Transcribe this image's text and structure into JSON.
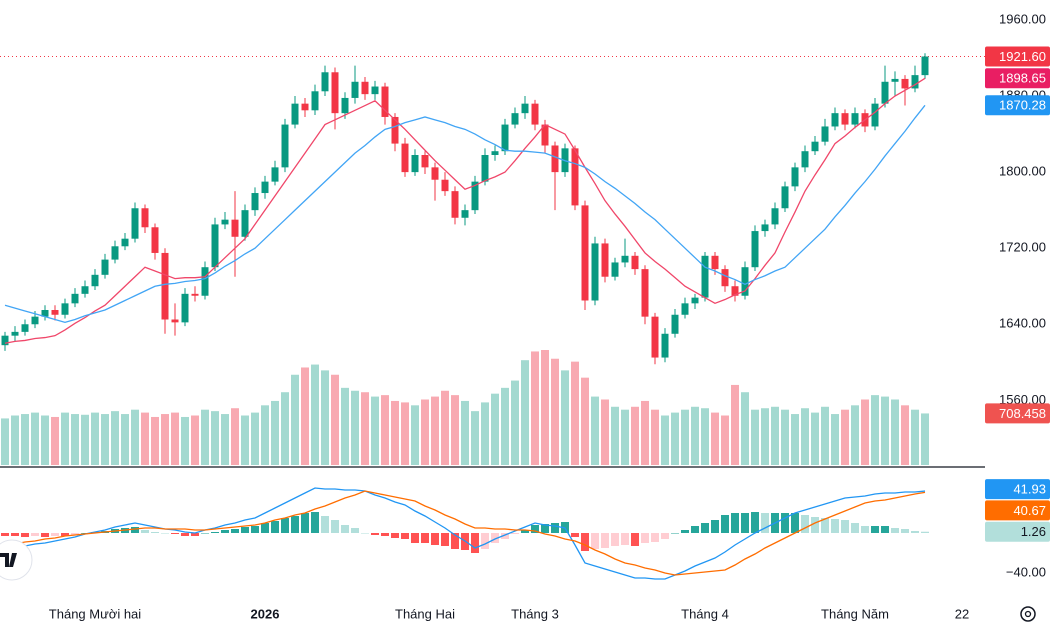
{
  "chart_data": {
    "type": "candlestick",
    "candles": [
      [
        1618,
        1632,
        1612,
        1628
      ],
      [
        1628,
        1638,
        1622,
        1632
      ],
      [
        1632,
        1645,
        1628,
        1640
      ],
      [
        1640,
        1654,
        1636,
        1648
      ],
      [
        1648,
        1660,
        1644,
        1655
      ],
      [
        1655,
        1660,
        1644,
        1650
      ],
      [
        1650,
        1667,
        1646,
        1662
      ],
      [
        1662,
        1678,
        1658,
        1672
      ],
      [
        1672,
        1686,
        1668,
        1680
      ],
      [
        1680,
        1698,
        1676,
        1692
      ],
      [
        1692,
        1714,
        1688,
        1708
      ],
      [
        1708,
        1728,
        1704,
        1722
      ],
      [
        1722,
        1736,
        1718,
        1730
      ],
      [
        1730,
        1768,
        1726,
        1762
      ],
      [
        1762,
        1766,
        1736,
        1742
      ],
      [
        1742,
        1746,
        1708,
        1715
      ],
      [
        1715,
        1720,
        1630,
        1645
      ],
      [
        1645,
        1662,
        1628,
        1642
      ],
      [
        1642,
        1678,
        1638,
        1672
      ],
      [
        1672,
        1680,
        1664,
        1670
      ],
      [
        1670,
        1706,
        1666,
        1700
      ],
      [
        1700,
        1752,
        1696,
        1745
      ],
      [
        1745,
        1758,
        1740,
        1750
      ],
      [
        1750,
        1780,
        1690,
        1732
      ],
      [
        1732,
        1766,
        1728,
        1760
      ],
      [
        1760,
        1784,
        1754,
        1778
      ],
      [
        1778,
        1796,
        1772,
        1790
      ],
      [
        1790,
        1812,
        1786,
        1805
      ],
      [
        1805,
        1856,
        1800,
        1850
      ],
      [
        1850,
        1880,
        1846,
        1872
      ],
      [
        1872,
        1878,
        1858,
        1865
      ],
      [
        1865,
        1892,
        1860,
        1885
      ],
      [
        1885,
        1912,
        1880,
        1905
      ],
      [
        1905,
        1910,
        1845,
        1862
      ],
      [
        1862,
        1884,
        1856,
        1878
      ],
      [
        1878,
        1912,
        1872,
        1895
      ],
      [
        1895,
        1900,
        1876,
        1882
      ],
      [
        1882,
        1896,
        1876,
        1890
      ],
      [
        1890,
        1894,
        1850,
        1858
      ],
      [
        1858,
        1862,
        1822,
        1830
      ],
      [
        1830,
        1836,
        1795,
        1800
      ],
      [
        1800,
        1824,
        1796,
        1818
      ],
      [
        1818,
        1822,
        1798,
        1805
      ],
      [
        1805,
        1810,
        1770,
        1792
      ],
      [
        1792,
        1800,
        1775,
        1780
      ],
      [
        1780,
        1785,
        1745,
        1752
      ],
      [
        1752,
        1766,
        1744,
        1760
      ],
      [
        1760,
        1796,
        1756,
        1790
      ],
      [
        1790,
        1825,
        1786,
        1818
      ],
      [
        1818,
        1828,
        1812,
        1822
      ],
      [
        1822,
        1856,
        1818,
        1850
      ],
      [
        1850,
        1868,
        1846,
        1862
      ],
      [
        1862,
        1880,
        1856,
        1872
      ],
      [
        1872,
        1876,
        1844,
        1850
      ],
      [
        1850,
        1855,
        1820,
        1828
      ],
      [
        1828,
        1832,
        1760,
        1800
      ],
      [
        1800,
        1830,
        1795,
        1825
      ],
      [
        1825,
        1828,
        1760,
        1765
      ],
      [
        1765,
        1770,
        1655,
        1665
      ],
      [
        1665,
        1732,
        1660,
        1725
      ],
      [
        1725,
        1730,
        1684,
        1690
      ],
      [
        1690,
        1710,
        1686,
        1705
      ],
      [
        1705,
        1730,
        1700,
        1712
      ],
      [
        1712,
        1716,
        1692,
        1698
      ],
      [
        1698,
        1702,
        1640,
        1648
      ],
      [
        1648,
        1652,
        1598,
        1605
      ],
      [
        1605,
        1636,
        1600,
        1630
      ],
      [
        1630,
        1656,
        1626,
        1650
      ],
      [
        1650,
        1668,
        1646,
        1662
      ],
      [
        1662,
        1672,
        1656,
        1668
      ],
      [
        1668,
        1716,
        1664,
        1712
      ],
      [
        1712,
        1716,
        1692,
        1698
      ],
      [
        1698,
        1702,
        1674,
        1680
      ],
      [
        1680,
        1686,
        1664,
        1670
      ],
      [
        1670,
        1706,
        1666,
        1700
      ],
      [
        1700,
        1744,
        1696,
        1738
      ],
      [
        1738,
        1750,
        1732,
        1745
      ],
      [
        1745,
        1768,
        1740,
        1762
      ],
      [
        1762,
        1790,
        1758,
        1785
      ],
      [
        1785,
        1810,
        1780,
        1805
      ],
      [
        1805,
        1828,
        1800,
        1822
      ],
      [
        1822,
        1838,
        1818,
        1832
      ],
      [
        1832,
        1856,
        1828,
        1848
      ],
      [
        1848,
        1868,
        1844,
        1862
      ],
      [
        1862,
        1866,
        1844,
        1850
      ],
      [
        1850,
        1868,
        1846,
        1862
      ],
      [
        1862,
        1866,
        1842,
        1848
      ],
      [
        1848,
        1878,
        1844,
        1872
      ],
      [
        1872,
        1912,
        1868,
        1895
      ],
      [
        1895,
        1906,
        1880,
        1898
      ],
      [
        1898,
        1902,
        1870,
        1888
      ],
      [
        1888,
        1912,
        1884,
        1902
      ],
      [
        1902,
        1925,
        1898,
        1921.6
      ]
    ],
    "last_price_label": "1921.60",
    "up_color": "#089981",
    "down_color": "#f23645",
    "categories": [
      null,
      null,
      null,
      null,
      null,
      null,
      null,
      null,
      null,
      "Tháng Mười hai",
      null,
      null,
      null,
      null,
      null,
      null,
      null,
      null,
      null,
      null,
      null,
      null,
      null,
      null,
      null,
      null,
      "2026",
      null,
      null,
      null,
      null,
      null,
      null,
      null,
      null,
      null,
      null,
      null,
      null,
      null,
      null,
      null,
      "Tháng Hai",
      null,
      null,
      null,
      null,
      null,
      null,
      null,
      null,
      null,
      null,
      "Tháng 3",
      null,
      null,
      null,
      null,
      null,
      null,
      null,
      null,
      null,
      null,
      null,
      null,
      null,
      null,
      null,
      null,
      "Tháng 4",
      null,
      null,
      null,
      null,
      null,
      null,
      null,
      null,
      null,
      null,
      null,
      null,
      null,
      null,
      "Tháng Năm",
      null,
      null,
      null,
      null,
      null,
      null,
      null
    ],
    "axis_end_label": "22",
    "ylim": [
      1492,
      1981
    ],
    "yticks": [
      {
        "value": 1960,
        "label": "1960.00"
      },
      {
        "value": 1880,
        "label": "1880.00"
      },
      {
        "value": 1800,
        "label": "1800.00"
      },
      {
        "value": 1720,
        "label": "1720.00"
      },
      {
        "value": 1640,
        "label": "1640.00"
      },
      {
        "value": 1560,
        "label": "1560.00"
      }
    ],
    "ma_fast": {
      "color": "#f0476a",
      "last_label": "1898.65",
      "values": [
        1620,
        1622,
        1623,
        1625,
        1626,
        1628,
        1634,
        1641,
        1647,
        1654,
        1660,
        1670,
        1680,
        1690,
        1700,
        1696,
        1692,
        1688,
        1689,
        1689,
        1690,
        1700,
        1710,
        1720,
        1730,
        1745,
        1760,
        1775,
        1790,
        1805,
        1820,
        1835,
        1850,
        1855,
        1860,
        1865,
        1870,
        1875,
        1865,
        1855,
        1845,
        1834,
        1823,
        1812,
        1802,
        1792,
        1782,
        1786,
        1791,
        1795,
        1800,
        1812,
        1825,
        1837,
        1850,
        1845,
        1840,
        1823,
        1805,
        1788,
        1770,
        1756,
        1743,
        1729,
        1715,
        1706,
        1698,
        1689,
        1680,
        1674,
        1668,
        1662,
        1666,
        1671,
        1675,
        1688,
        1702,
        1715,
        1737,
        1758,
        1780,
        1797,
        1813,
        1830,
        1838,
        1847,
        1855,
        1863,
        1872,
        1880,
        1886,
        1892,
        1898.65
      ]
    },
    "ma_slow": {
      "color": "#42a5f5",
      "last_label": "1870.28",
      "values": [
        1660,
        1657,
        1654,
        1651,
        1648,
        1645,
        1642,
        1645,
        1649,
        1652,
        1655,
        1660,
        1665,
        1670,
        1675,
        1680,
        1682,
        1683,
        1685,
        1686,
        1688,
        1694,
        1701,
        1707,
        1714,
        1720,
        1730,
        1740,
        1750,
        1760,
        1770,
        1780,
        1790,
        1800,
        1810,
        1820,
        1828,
        1837,
        1845,
        1848,
        1852,
        1855,
        1858,
        1855,
        1852,
        1848,
        1845,
        1840,
        1834,
        1829,
        1823,
        1822,
        1822,
        1821,
        1820,
        1816,
        1812,
        1809,
        1805,
        1798,
        1790,
        1783,
        1775,
        1767,
        1758,
        1750,
        1740,
        1730,
        1720,
        1710,
        1700,
        1696,
        1691,
        1687,
        1682,
        1687,
        1691,
        1696,
        1700,
        1710,
        1720,
        1730,
        1740,
        1753,
        1765,
        1778,
        1790,
        1803,
        1817,
        1830,
        1843,
        1857,
        1870.28
      ]
    },
    "volume": {
      "up_color": "#a3d9d0",
      "down_color": "#f8a9b1",
      "last_label": "708.458",
      "values": [
        640,
        680,
        700,
        720,
        680,
        660,
        720,
        700,
        690,
        720,
        700,
        740,
        700,
        760,
        720,
        660,
        700,
        720,
        660,
        680,
        760,
        740,
        700,
        780,
        680,
        720,
        820,
        880,
        1000,
        1240,
        1340,
        1380,
        1300,
        1240,
        1060,
        1020,
        1000,
        940,
        960,
        880,
        860,
        820,
        900,
        940,
        1020,
        960,
        880,
        740,
        860,
        980,
        1060,
        1160,
        1440,
        1560,
        1580,
        1460,
        1300,
        1420,
        1200,
        940,
        900,
        800,
        760,
        800,
        880,
        760,
        680,
        720,
        760,
        800,
        780,
        720,
        680,
        1100,
        1000,
        760,
        780,
        800,
        760,
        700,
        780,
        720,
        800,
        700,
        760,
        820,
        900,
        960,
        940,
        900,
        820,
        760,
        708.458
      ]
    },
    "macd_ylim": [
      -67,
      65
    ],
    "macd_yticks": [
      {
        "value": -40,
        "label": "−40.00"
      }
    ],
    "macd": {
      "color": "#2196f3",
      "last_label": "41.93",
      "values": [
        -15,
        -14,
        -13,
        -11,
        -10,
        -8,
        -6,
        -4,
        -1,
        1,
        3,
        6,
        8,
        10,
        8,
        6,
        4,
        3,
        1,
        0,
        3,
        5,
        8,
        10,
        13,
        15,
        20,
        25,
        30,
        35,
        40,
        45,
        44,
        44,
        43,
        43,
        42,
        38,
        35,
        31,
        28,
        22,
        17,
        11,
        5,
        -2,
        -8,
        -15,
        -11,
        -6,
        -2,
        2,
        6,
        10,
        8,
        7,
        5,
        -12,
        -30,
        -33,
        -36,
        -39,
        -42,
        -45,
        -45,
        -46,
        -46,
        -42,
        -38,
        -33,
        -29,
        -25,
        -19,
        -12,
        -6,
        0,
        5,
        10,
        15,
        20,
        23,
        26,
        29,
        32,
        35,
        36,
        37,
        39,
        40,
        40,
        41,
        41,
        41.93
      ]
    },
    "signal": {
      "color": "#ff6d00",
      "last_label": "40.67",
      "values": [
        -12,
        -11,
        -9,
        -8,
        -6,
        -5,
        -3,
        -2,
        -1,
        0,
        1,
        2,
        3,
        4,
        5,
        5,
        4,
        4,
        4,
        3,
        3,
        4,
        5,
        6,
        7,
        8,
        10,
        13,
        15,
        18,
        20,
        24,
        27,
        31,
        35,
        38,
        42,
        40,
        38,
        36,
        34,
        32,
        27,
        23,
        18,
        14,
        9,
        5,
        5,
        4,
        4,
        3,
        3,
        2,
        -1,
        -3,
        -6,
        -8,
        -12,
        -17,
        -21,
        -26,
        -30,
        -32,
        -35,
        -37,
        -40,
        -42,
        -41,
        -40,
        -39,
        -38,
        -37,
        -32,
        -26,
        -21,
        -15,
        -10,
        -5,
        0,
        5,
        10,
        14,
        18,
        22,
        26,
        30,
        32,
        33,
        35,
        37,
        39,
        40.67
      ]
    },
    "histogram": {
      "colors": [
        "#26a69a",
        "#b2dfdb",
        "#ff5252",
        "#ffcdd2"
      ],
      "last_label": "1.26",
      "values": [
        -3,
        -3,
        -4,
        -3,
        -4,
        -3,
        -3,
        -2,
        0,
        1,
        2,
        4,
        5,
        6,
        3,
        1,
        0,
        -1,
        -3,
        -3,
        0,
        1,
        3,
        4,
        6,
        7,
        10,
        12,
        15,
        17,
        20,
        21,
        17,
        13,
        8,
        5,
        0,
        -2,
        -3,
        -5,
        -6,
        -10,
        -10,
        -12,
        -13,
        -16,
        -17,
        -20,
        -16,
        -10,
        -6,
        -1,
        3,
        8,
        9,
        10,
        11,
        -4,
        -18,
        -16,
        -15,
        -13,
        -12,
        -13,
        -10,
        -9,
        -6,
        0,
        3,
        7,
        10,
        13,
        18,
        20,
        20,
        21,
        20,
        20,
        20,
        20,
        18,
        16,
        15,
        14,
        13,
        10,
        7,
        7,
        7,
        5,
        4,
        2,
        1.26
      ]
    }
  }
}
